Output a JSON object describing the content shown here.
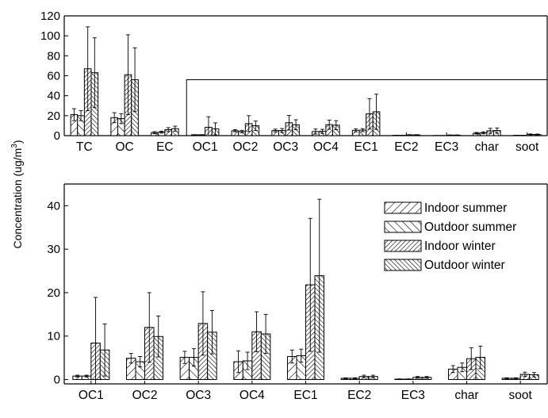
{
  "chart_data": [
    {
      "type": "bar",
      "panel": "top",
      "categories": [
        "TC",
        "OC",
        "EC",
        "OC1",
        "OC2",
        "OC3",
        "OC4",
        "EC1",
        "EC2",
        "EC3",
        "char",
        "soot"
      ],
      "ylabel": "Concentration (ug/m3)",
      "ylabel_parts": {
        "main": "Concentration (ug/m",
        "sup": "3",
        "close": ")"
      },
      "ylim": [
        0,
        120
      ],
      "yticks": [
        0,
        20,
        40,
        60,
        80,
        100,
        120
      ],
      "series": [
        {
          "name": "Indoor summer",
          "values": [
            21,
            18,
            3,
            0.8,
            4.9,
            5.1,
            4.1,
            5.3,
            0.3,
            0.1,
            2.4,
            0.3
          ],
          "errors": [
            6,
            5,
            1,
            0.2,
            1.1,
            1.4,
            2.5,
            1.5,
            0.1,
            0.05,
            0.8,
            0.1
          ]
        },
        {
          "name": "Outdoor summer",
          "values": [
            20,
            17,
            3.5,
            0.8,
            4.1,
            5.1,
            4.3,
            5.5,
            0.3,
            0.1,
            2.8,
            0.3
          ],
          "errors": [
            5,
            5,
            1,
            0.2,
            1.2,
            2,
            2,
            1.5,
            0.1,
            0.05,
            1,
            0.1
          ]
        },
        {
          "name": "Indoor winter",
          "values": [
            67,
            61,
            6,
            8.4,
            12,
            12.9,
            11,
            21.8,
            0.7,
            0.5,
            4.8,
            1.2
          ],
          "errors": [
            42,
            40,
            2,
            10.5,
            8,
            7.3,
            4.6,
            15.3,
            0.3,
            0.2,
            2.5,
            0.5
          ]
        },
        {
          "name": "Outdoor winter",
          "values": [
            63,
            56,
            7,
            6.8,
            9.9,
            10.9,
            10.5,
            23.9,
            0.7,
            0.5,
            5.1,
            1.1
          ],
          "errors": [
            35,
            32,
            2.5,
            6,
            4.7,
            5,
            4.5,
            17.6,
            0.3,
            0.2,
            2.6,
            0.5
          ]
        }
      ]
    },
    {
      "type": "bar",
      "panel": "bottom",
      "categories": [
        "OC1",
        "OC2",
        "OC3",
        "OC4",
        "EC1",
        "EC2",
        "EC3",
        "char",
        "soot"
      ],
      "ylim": [
        -1,
        45
      ],
      "yticks": [
        0,
        10,
        20,
        30,
        40
      ],
      "legend": "top-right",
      "series": [
        {
          "name": "Indoor summer",
          "values": [
            0.8,
            4.9,
            5.1,
            4.1,
            5.3,
            0.3,
            0.1,
            2.4,
            0.3
          ],
          "errors": [
            0.2,
            1.1,
            1.4,
            2.5,
            1.5,
            0.1,
            0.05,
            0.8,
            0.1
          ]
        },
        {
          "name": "Outdoor summer",
          "values": [
            0.8,
            4.1,
            5.1,
            4.3,
            5.5,
            0.3,
            0.1,
            2.8,
            0.3
          ],
          "errors": [
            0.2,
            1.2,
            2,
            2,
            1.5,
            0.1,
            0.05,
            1,
            0.1
          ]
        },
        {
          "name": "Indoor winter",
          "values": [
            8.4,
            12,
            12.9,
            11,
            21.8,
            0.7,
            0.5,
            4.8,
            1.2
          ],
          "errors": [
            10.5,
            8,
            7.3,
            4.6,
            15.3,
            0.3,
            0.2,
            2.5,
            0.5
          ]
        },
        {
          "name": "Outdoor winter",
          "values": [
            6.8,
            9.9,
            10.9,
            10.5,
            23.9,
            0.7,
            0.5,
            5.1,
            1.1
          ],
          "errors": [
            6,
            4.7,
            5,
            4.5,
            17.6,
            0.3,
            0.2,
            2.6,
            0.5
          ]
        }
      ]
    }
  ]
}
